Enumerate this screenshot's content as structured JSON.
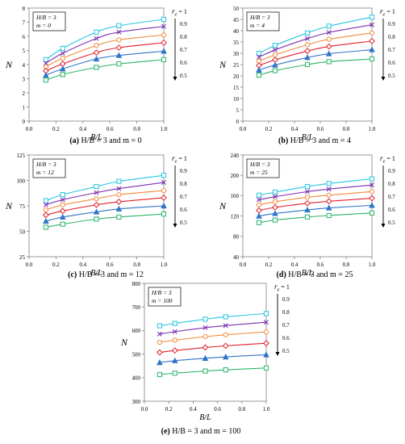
{
  "figure": {
    "legend_title_base": "r",
    "legend_title_sub": "e",
    "legend_title_eq": "= 1",
    "re_labels": [
      "1",
      "0.9",
      "0.8",
      "0.7",
      "0.6",
      "0.5"
    ],
    "series_colors": [
      "#27c4e0",
      "#7b2fb0",
      "#f08a3a",
      "#e0202a",
      "#2e74c8",
      "#2db36a"
    ]
  },
  "chart_data": [
    {
      "type": "line",
      "caption_letter": "(a)",
      "caption_rest": "H/B = 3 and m = 0",
      "box_line1": "H/B = 3",
      "box_line2": "m = 0",
      "ylabel": "N",
      "xlabel": "B/L",
      "xlim": [
        0.0,
        1.0
      ],
      "xticks": [
        "0.0",
        "0.2",
        "0.4",
        "0.6",
        "0.8",
        "1.0"
      ],
      "ylim": [
        0,
        8
      ],
      "yticks": [
        "0",
        "1",
        "2",
        "3",
        "4",
        "5",
        "6",
        "7",
        "8"
      ],
      "x": [
        0.125,
        0.25,
        0.5,
        0.667,
        1.0
      ],
      "series": [
        {
          "name": "1",
          "marker": "square",
          "values": [
            4.35,
            5.15,
            6.3,
            6.75,
            7.2
          ]
        },
        {
          "name": "0.9",
          "marker": "x",
          "values": [
            4.1,
            4.8,
            5.85,
            6.3,
            6.7
          ]
        },
        {
          "name": "0.8",
          "marker": "circle",
          "values": [
            3.85,
            4.45,
            5.35,
            5.75,
            6.1
          ]
        },
        {
          "name": "0.7",
          "marker": "diamond",
          "values": [
            3.55,
            4.05,
            4.85,
            5.2,
            5.55
          ]
        },
        {
          "name": "0.6",
          "marker": "triangle",
          "values": [
            3.25,
            3.7,
            4.4,
            4.65,
            4.95
          ]
        },
        {
          "name": "0.5",
          "marker": "square",
          "values": [
            2.9,
            3.3,
            3.8,
            4.05,
            4.35
          ]
        }
      ]
    },
    {
      "type": "line",
      "caption_letter": "(b)",
      "caption_rest": "H/B = 3 and m = 4",
      "box_line1": "H/B = 3",
      "box_line2": "m = 4",
      "ylabel": "N",
      "xlabel": "B/L",
      "xlim": [
        0.0,
        1.0
      ],
      "xticks": [
        "0.0",
        "0.2",
        "0.4",
        "0.6",
        "0.8",
        "1.0"
      ],
      "ylim": [
        0,
        50
      ],
      "yticks": [
        "0",
        "5",
        "10",
        "15",
        "20",
        "25",
        "30",
        "35",
        "40",
        "45",
        "50"
      ],
      "x": [
        0.125,
        0.25,
        0.5,
        0.667,
        1.0
      ],
      "series": [
        {
          "name": "1",
          "marker": "square",
          "values": [
            30.0,
            33.5,
            39.0,
            42.0,
            46.0
          ]
        },
        {
          "name": "0.9",
          "marker": "x",
          "values": [
            28.3,
            31.5,
            36.5,
            39.2,
            42.6
          ]
        },
        {
          "name": "0.8",
          "marker": "circle",
          "values": [
            26.5,
            29.3,
            33.8,
            36.2,
            39.0
          ]
        },
        {
          "name": "0.7",
          "marker": "diamond",
          "values": [
            24.6,
            27.1,
            31.0,
            33.0,
            35.4
          ]
        },
        {
          "name": "0.6",
          "marker": "triangle",
          "values": [
            22.6,
            24.8,
            28.1,
            29.8,
            31.6
          ]
        },
        {
          "name": "0.5",
          "marker": "square",
          "values": [
            20.3,
            22.3,
            25.0,
            26.3,
            27.5
          ]
        }
      ]
    },
    {
      "type": "line",
      "caption_letter": "(c)",
      "caption_rest": "H/B = 3 and m = 12",
      "box_line1": "H/B = 3",
      "box_line2": "m = 12",
      "ylabel": "N",
      "xlabel": "B/L",
      "xlim": [
        0.0,
        1.0
      ],
      "xticks": [
        "0.0",
        "0.2",
        "0.4",
        "0.6",
        "0.8",
        "1.0"
      ],
      "ylim": [
        25,
        125
      ],
      "yticks": [
        "25",
        "50",
        "75",
        "100",
        "125"
      ],
      "x": [
        0.125,
        0.25,
        0.5,
        0.667,
        1.0
      ],
      "series": [
        {
          "name": "1",
          "marker": "square",
          "values": [
            80,
            86,
            94,
            99,
            105
          ]
        },
        {
          "name": "0.9",
          "marker": "x",
          "values": [
            76,
            81,
            88,
            92,
            98
          ]
        },
        {
          "name": "0.8",
          "marker": "circle",
          "values": [
            71,
            76,
            82,
            86,
            90
          ]
        },
        {
          "name": "0.7",
          "marker": "diamond",
          "values": [
            66,
            70,
            76,
            79,
            83
          ]
        },
        {
          "name": "0.6",
          "marker": "triangle",
          "values": [
            60,
            64,
            69,
            72,
            75
          ]
        },
        {
          "name": "0.5",
          "marker": "square",
          "values": [
            54,
            57,
            62,
            64,
            67
          ]
        }
      ]
    },
    {
      "type": "line",
      "caption_letter": "(d)",
      "caption_rest": "H/B = 3 and m = 25",
      "box_line1": "H/B = 3",
      "box_line2": "m = 25",
      "ylabel": "N",
      "xlabel": "B/L",
      "xlim": [
        0.0,
        1.0
      ],
      "xticks": [
        "0.0",
        "0.2",
        "0.4",
        "0.6",
        "0.8",
        "1.0"
      ],
      "ylim": [
        40,
        240
      ],
      "yticks": [
        "40",
        "80",
        "120",
        "160",
        "200",
        "240"
      ],
      "x": [
        0.125,
        0.25,
        0.5,
        0.667,
        1.0
      ],
      "series": [
        {
          "name": "1",
          "marker": "square",
          "values": [
            161,
            167,
            178,
            184,
            193
          ]
        },
        {
          "name": "0.9",
          "marker": "x",
          "values": [
            152,
            158,
            168,
            173,
            181
          ]
        },
        {
          "name": "0.8",
          "marker": "circle",
          "values": [
            142,
            148,
            157,
            161,
            168
          ]
        },
        {
          "name": "0.7",
          "marker": "diamond",
          "values": [
            131,
            137,
            145,
            149,
            155
          ]
        },
        {
          "name": "0.6",
          "marker": "triangle",
          "values": [
            120,
            125,
            132,
            136,
            141
          ]
        },
        {
          "name": "0.5",
          "marker": "square",
          "values": [
            107,
            112,
            118,
            121,
            126
          ]
        }
      ]
    },
    {
      "type": "line",
      "caption_letter": "(e)",
      "caption_rest": "H/B = 3 and m = 100",
      "box_line1": "H/B = 3",
      "box_line2": "m = 100",
      "ylabel": "N",
      "xlabel": "B/L",
      "xlim": [
        0.0,
        1.0
      ],
      "xticks": [
        "0.0",
        "0.2",
        "0.4",
        "0.6",
        "0.8",
        "1.0"
      ],
      "ylim": [
        300,
        800
      ],
      "yticks": [
        "300",
        "400",
        "500",
        "600",
        "700",
        "800"
      ],
      "x": [
        0.125,
        0.25,
        0.5,
        0.667,
        1.0
      ],
      "series": [
        {
          "name": "1",
          "marker": "square",
          "values": [
            620,
            630,
            648,
            658,
            672
          ]
        },
        {
          "name": "0.9",
          "marker": "x",
          "values": [
            585,
            595,
            612,
            621,
            635
          ]
        },
        {
          "name": "0.8",
          "marker": "circle",
          "values": [
            550,
            559,
            574,
            582,
            594
          ]
        },
        {
          "name": "0.7",
          "marker": "diamond",
          "values": [
            507,
            515,
            528,
            535,
            546
          ]
        },
        {
          "name": "0.6",
          "marker": "triangle",
          "values": [
            464,
            472,
            482,
            488,
            497
          ]
        },
        {
          "name": "0.5",
          "marker": "square",
          "values": [
            413,
            419,
            428,
            433,
            441
          ]
        }
      ]
    }
  ]
}
